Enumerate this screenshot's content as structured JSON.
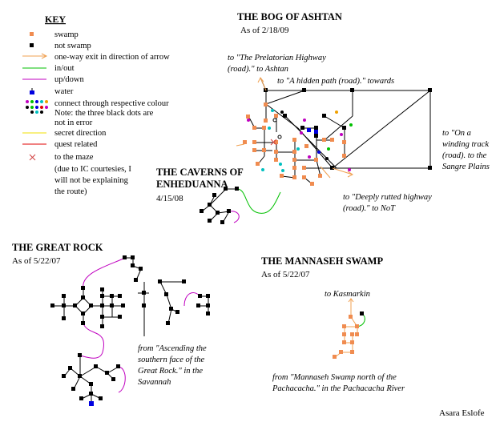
{
  "key": {
    "heading": "KEY",
    "items": [
      {
        "label": "swamp"
      },
      {
        "label": "not swamp"
      },
      {
        "label": "one-way exit in direction of arrow"
      },
      {
        "label": "in/out"
      },
      {
        "label": "up/down"
      },
      {
        "label": "water"
      },
      {
        "label": "connect through respective colour",
        "note1": "Note: the three black dots are",
        "note2": "not in error"
      },
      {
        "label": "secret direction"
      },
      {
        "label": "quest related"
      },
      {
        "label": "to the maze",
        "note1": "(due to IC courtesies, I",
        "note2": "will not be explaining",
        "note3": "the route)"
      }
    ],
    "colors": {
      "swamp": "#f08c50",
      "not_swamp": "#000000",
      "one_way": "#f0a050",
      "in_out": "#00c000",
      "up_down": "#c000c0",
      "water": "#0000e0",
      "secret": "#f0e000",
      "quest": "#e00000",
      "maze": "#d04040"
    }
  },
  "bog": {
    "title": "THE BOG OF ASHTAN",
    "date": "As of 2/18/09",
    "labels": {
      "pre1": "to \"The Prelatorian Highway",
      "pre2": "(road).\" to Ashtan",
      "hidden": "to \"A hidden path (road).\" towards",
      "track1": "to \"On a",
      "track2": "winding track",
      "track3": "(road). to the",
      "track4": "Sangre Plains",
      "rut1": "to \"Deeply rutted highway",
      "rut2": "(road).\" to NoT"
    }
  },
  "caverns": {
    "title1": "THE CAVERNS OF",
    "title2": "ENHEDUANNA",
    "date": "4/15/08"
  },
  "great_rock": {
    "title": "THE GREAT ROCK",
    "date": "As of 5/22/07",
    "labels": {
      "from1": "from \"Ascending the",
      "from2": "southern face of the",
      "from3": "Great Rock.\" in the",
      "from4": "Savannah"
    }
  },
  "mannaseh": {
    "title": "THE MANNASEH SWAMP",
    "date": "As of 5/22/07",
    "labels": {
      "kas": "to Kasmarkin",
      "from1": "from \"Mannaseh Swamp north of the",
      "from2": "Pachacacha.\" in the Pachacacha River"
    }
  },
  "author": "Asara Eslofe"
}
